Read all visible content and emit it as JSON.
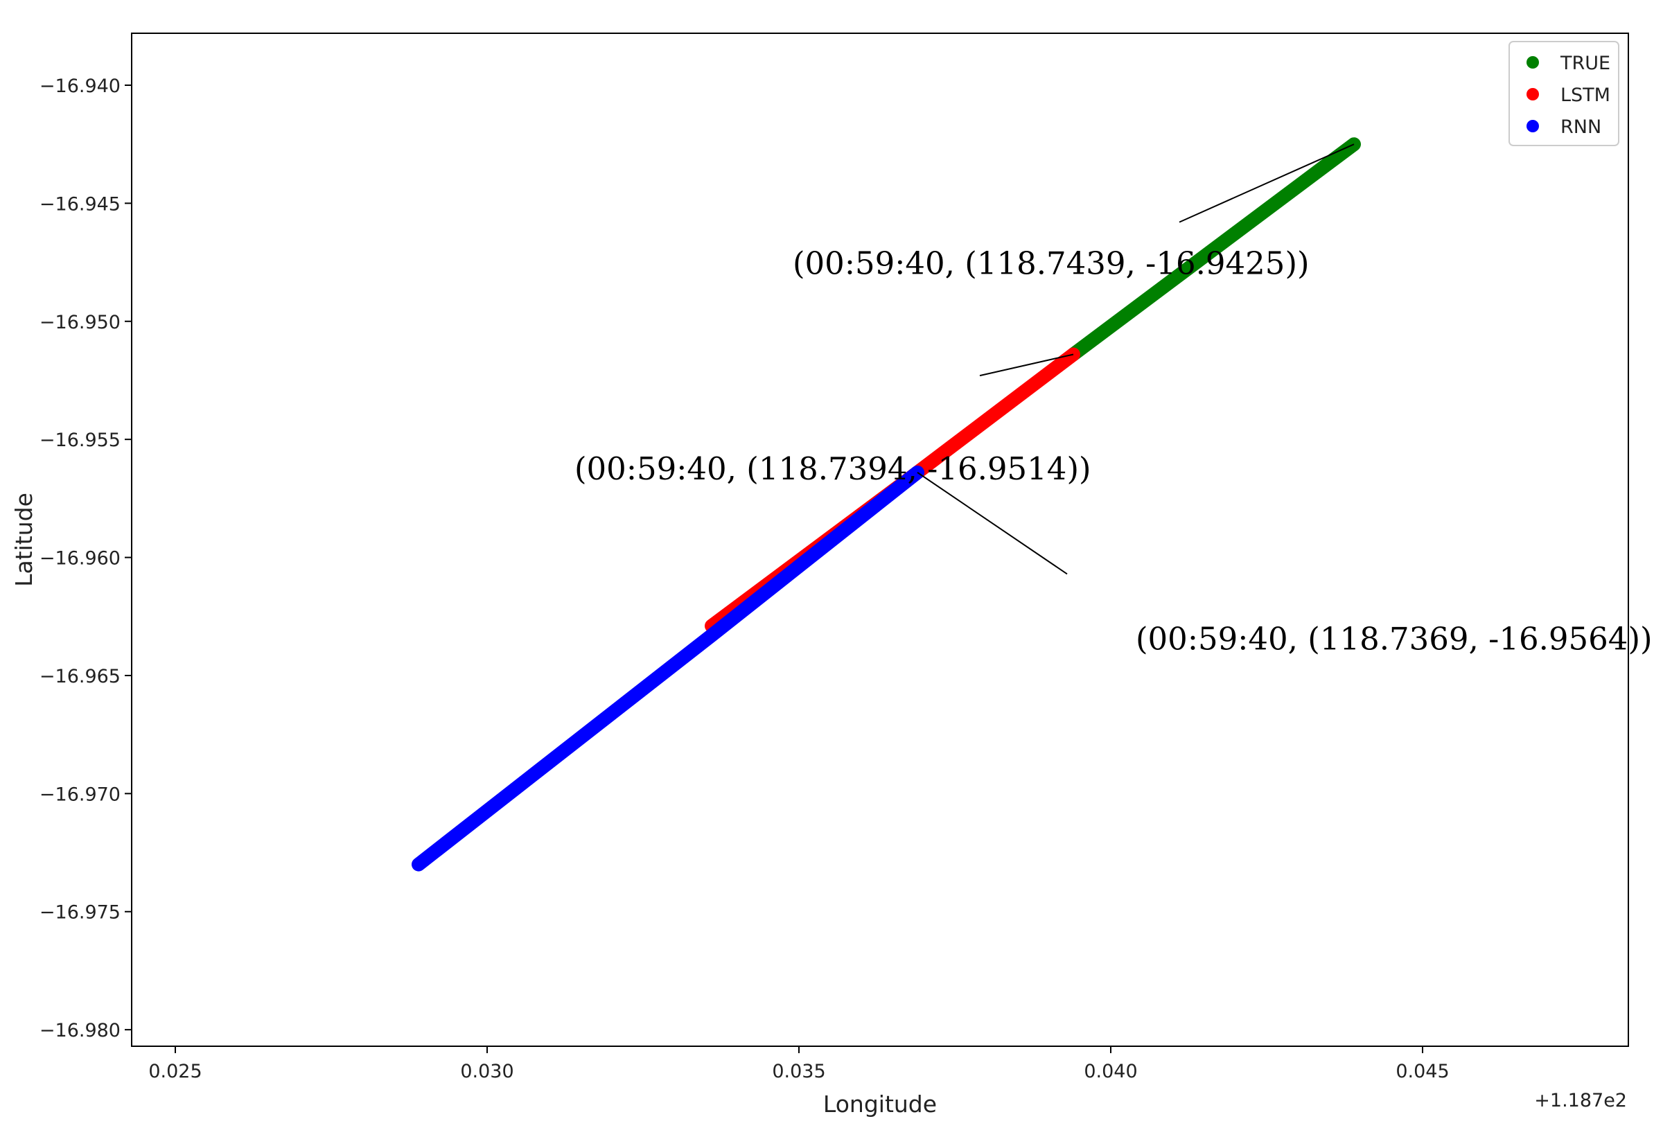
{
  "chart_data": {
    "type": "line",
    "xlabel": "Longitude",
    "ylabel": "Latitude",
    "x_offset_label": "+1.187e2",
    "xlim": [
      0.0243,
      0.0483
    ],
    "ylim": [
      -16.9807,
      -16.9378
    ],
    "x_ticks": [
      {
        "value": 0.025,
        "label": "0.025"
      },
      {
        "value": 0.03,
        "label": "0.030"
      },
      {
        "value": 0.035,
        "label": "0.035"
      },
      {
        "value": 0.04,
        "label": "0.040"
      },
      {
        "value": 0.045,
        "label": "0.045"
      }
    ],
    "y_ticks": [
      {
        "value": -16.94,
        "label": "−16.940"
      },
      {
        "value": -16.945,
        "label": "−16.945"
      },
      {
        "value": -16.95,
        "label": "−16.950"
      },
      {
        "value": -16.955,
        "label": "−16.955"
      },
      {
        "value": -16.96,
        "label": "−16.960"
      },
      {
        "value": -16.965,
        "label": "−16.965"
      },
      {
        "value": -16.97,
        "label": "−16.970"
      },
      {
        "value": -16.975,
        "label": "−16.975"
      },
      {
        "value": -16.98,
        "label": "−16.980"
      }
    ],
    "legend_position": "top-right",
    "grid": false,
    "series": [
      {
        "name": "TRUE",
        "color": "#008000",
        "x": [
          0.0394,
          0.0439
        ],
        "y": [
          -16.9514,
          -16.9425
        ]
      },
      {
        "name": "LSTM",
        "color": "#ff0000",
        "x": [
          0.0336,
          0.0369,
          0.0394
        ],
        "y": [
          -16.9629,
          -16.9564,
          -16.9514
        ]
      },
      {
        "name": "RNN",
        "color": "#0000ff",
        "x": [
          0.0289,
          0.0336,
          0.0369
        ],
        "y": [
          -16.973,
          -16.9633,
          -16.9564
        ]
      }
    ],
    "annotations": [
      {
        "text": "(00:59:40, (118.7439, -16.9425))",
        "point": [
          0.0439,
          -16.9425
        ],
        "line_end": [
          0.0411,
          -16.9458
        ],
        "text_pos": [
          0.0349,
          -16.948
        ]
      },
      {
        "text": "(00:59:40, (118.7394, -16.9514))",
        "point": [
          0.0394,
          -16.9514
        ],
        "line_end": [
          0.0379,
          -16.9523
        ],
        "text_pos": [
          0.0314,
          -16.9567
        ]
      },
      {
        "text": "(00:59:40, (118.7369, -16.9564))",
        "point": [
          0.0369,
          -16.9564
        ],
        "line_end": [
          0.0393,
          -16.9607
        ],
        "text_pos": [
          0.0404,
          -16.9639
        ]
      }
    ]
  }
}
